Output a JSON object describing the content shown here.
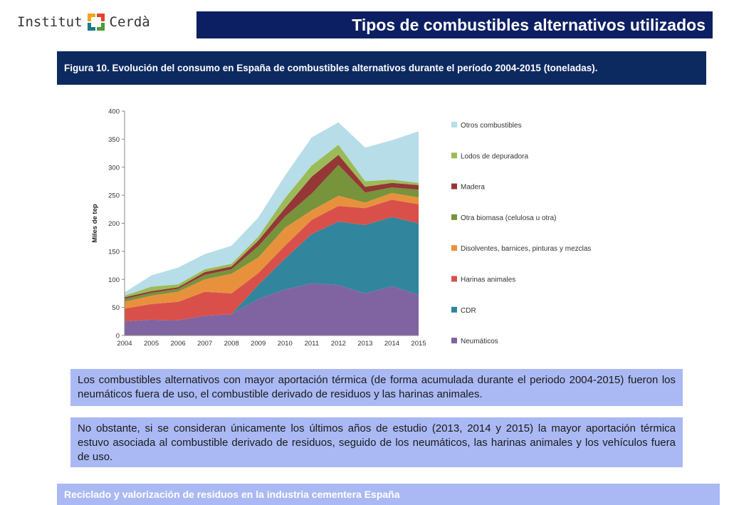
{
  "header": {
    "logo_left": "Institut",
    "logo_right": "Cerdà",
    "title": "Tipos de combustibles alternativos utilizados"
  },
  "figure_caption": "Figura 10. Evolución del consumo en España de combustibles alternativos durante el período 2004-2015 (toneladas).",
  "chart_data": {
    "type": "area",
    "stacked": true,
    "ylabel": "Miles de tep",
    "ylim": [
      0,
      400
    ],
    "yticks": [
      0,
      50,
      100,
      150,
      200,
      250,
      300,
      350,
      400
    ],
    "x": [
      "2004",
      "2005",
      "2006",
      "2007",
      "2008",
      "2009",
      "2010",
      "2011",
      "2012",
      "2013",
      "2014",
      "2015"
    ],
    "legend_position": "right",
    "grid": false,
    "series": [
      {
        "name": "Neumáticos",
        "color": "#8064a2",
        "values": [
          25,
          28,
          27,
          35,
          38,
          65,
          82,
          93,
          90,
          75,
          88,
          73
        ]
      },
      {
        "name": "CDR",
        "color": "#31859c",
        "values": [
          0,
          0,
          0,
          0,
          0,
          25,
          55,
          88,
          113,
          122,
          123,
          127
        ]
      },
      {
        "name": "Harinas animales",
        "color": "#d9504a",
        "values": [
          23,
          28,
          33,
          43,
          37,
          21,
          23,
          25,
          28,
          30,
          31,
          34
        ]
      },
      {
        "name": "Disolventes, barnices, pinturas y mezclas",
        "color": "#e8913d",
        "values": [
          12,
          15,
          18,
          22,
          35,
          28,
          32,
          17,
          18,
          10,
          12,
          12
        ]
      },
      {
        "name": "Otra biomasa (celulosa u otra)",
        "color": "#77933c",
        "values": [
          5,
          5,
          5,
          8,
          8,
          20,
          20,
          30,
          55,
          18,
          10,
          14
        ]
      },
      {
        "name": "Madera",
        "color": "#953735",
        "values": [
          3,
          3,
          3,
          5,
          5,
          10,
          15,
          30,
          18,
          10,
          8,
          8
        ]
      },
      {
        "name": "Lodos de depuradora",
        "color": "#9bbb59",
        "values": [
          3,
          8,
          5,
          5,
          5,
          7,
          18,
          20,
          18,
          10,
          6,
          4
        ]
      },
      {
        "name": "Otros combustibles",
        "color": "#b7dde8",
        "values": [
          6,
          20,
          30,
          27,
          32,
          34,
          40,
          50,
          40,
          60,
          70,
          92
        ]
      }
    ]
  },
  "paragraphs": [
    "Los combustibles alternativos con mayor aportación térmica (de forma acumulada durante el periodo 2004-2015) fueron los neumáticos fuera de uso, el combustible derivado de residuos y las harinas animales.",
    "No obstante, si se consideran únicamente los últimos años de estudio (2013, 2014 y 2015) la mayor aportación térmica estuvo asociada al combustible derivado de residuos, seguido de los neumáticos, las harinas animales y los vehículos fuera de uso."
  ],
  "footer": "Reciclado y valorización de residuos en la industria cementera España",
  "colors": {
    "title_bar": "#0d1f63",
    "caption_bar": "#0d2a60",
    "text_box": "#aab9f4"
  }
}
